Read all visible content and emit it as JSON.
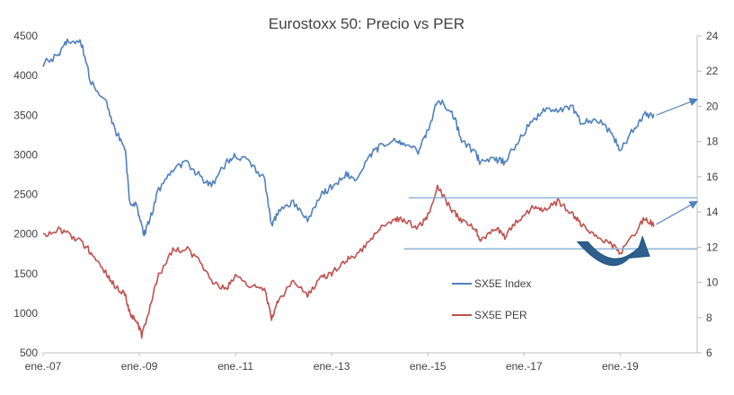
{
  "chart_data": {
    "type": "line",
    "title": "Eurostoxx 50: Precio vs PER",
    "x_tick_labels": [
      "ene.-07",
      "ene.-09",
      "ene.-11",
      "ene.-13",
      "ene.-15",
      "ene.-17",
      "ene.-19"
    ],
    "x_range": [
      2007.0,
      2020.6
    ],
    "y_left": {
      "range": [
        500,
        4500
      ],
      "ticks": [
        500,
        1000,
        1500,
        2000,
        2500,
        3000,
        3500,
        4000,
        4500
      ]
    },
    "y_right": {
      "range": [
        6,
        24
      ],
      "ticks": [
        6,
        8,
        10,
        12,
        14,
        16,
        18,
        20,
        22,
        24
      ]
    },
    "colors": {
      "index": "#4f81bd",
      "per": "#c0504d",
      "annotation": "#4f81bd",
      "arrow_fill": "#2e5f8f",
      "guide": "#8eb4d8"
    },
    "series": [
      {
        "name": "SX5E Index",
        "axis": "left",
        "x": [
          2007.0,
          2007.3,
          2007.5,
          2007.8,
          2008.0,
          2008.3,
          2008.5,
          2008.7,
          2008.8,
          2008.95,
          2009.1,
          2009.2,
          2009.4,
          2009.7,
          2010.0,
          2010.3,
          2010.5,
          2010.8,
          2011.0,
          2011.3,
          2011.6,
          2011.75,
          2011.9,
          2012.2,
          2012.5,
          2012.8,
          2013.0,
          2013.3,
          2013.5,
          2013.8,
          2014.0,
          2014.3,
          2014.5,
          2014.8,
          2015.0,
          2015.2,
          2015.5,
          2015.7,
          2016.0,
          2016.1,
          2016.4,
          2016.6,
          2016.9,
          2017.2,
          2017.4,
          2017.7,
          2018.0,
          2018.2,
          2018.5,
          2018.8,
          2019.0,
          2019.3,
          2019.5,
          2019.7
        ],
        "values": [
          4150,
          4250,
          4450,
          4400,
          3900,
          3700,
          3300,
          3100,
          2400,
          2350,
          2000,
          2150,
          2550,
          2800,
          2900,
          2700,
          2600,
          2900,
          3000,
          2900,
          2700,
          2100,
          2300,
          2400,
          2200,
          2500,
          2600,
          2750,
          2700,
          3000,
          3100,
          3200,
          3150,
          3050,
          3300,
          3700,
          3550,
          3200,
          3000,
          2900,
          2950,
          2900,
          3200,
          3450,
          3550,
          3550,
          3600,
          3400,
          3450,
          3300,
          3050,
          3350,
          3500,
          3500
        ]
      },
      {
        "name": "SX5E PER",
        "axis": "right",
        "x": [
          2007.0,
          2007.3,
          2007.5,
          2007.8,
          2008.0,
          2008.3,
          2008.5,
          2008.7,
          2008.8,
          2008.95,
          2009.05,
          2009.2,
          2009.4,
          2009.7,
          2010.0,
          2010.3,
          2010.5,
          2010.8,
          2011.0,
          2011.3,
          2011.6,
          2011.75,
          2011.9,
          2012.2,
          2012.5,
          2012.8,
          2013.0,
          2013.3,
          2013.5,
          2013.8,
          2014.0,
          2014.3,
          2014.5,
          2014.8,
          2015.0,
          2015.2,
          2015.5,
          2015.7,
          2016.0,
          2016.1,
          2016.4,
          2016.6,
          2016.9,
          2017.2,
          2017.4,
          2017.7,
          2018.0,
          2018.2,
          2018.5,
          2018.8,
          2019.0,
          2019.3,
          2019.5,
          2019.7
        ],
        "values": [
          12.6,
          13.0,
          12.8,
          12.3,
          11.7,
          10.6,
          9.8,
          9.3,
          8.3,
          7.7,
          7.0,
          8.4,
          10.4,
          11.8,
          11.9,
          11.0,
          10.0,
          9.6,
          10.4,
          9.8,
          9.6,
          8.0,
          9.0,
          10.0,
          9.3,
          10.3,
          10.5,
          11.3,
          11.4,
          12.5,
          13.1,
          13.6,
          13.5,
          13.1,
          13.8,
          15.4,
          14.1,
          13.5,
          13.0,
          12.3,
          13.1,
          12.6,
          13.6,
          14.3,
          14.0,
          14.6,
          13.9,
          13.3,
          12.6,
          12.2,
          11.6,
          12.8,
          13.6,
          13.3
        ]
      }
    ],
    "annotations": {
      "guide_high_per": 14.8,
      "guide_low_per": 11.9,
      "arrow_from": [
        2018.2,
        12.0
      ],
      "arrow_to": [
        2019.5,
        12.1
      ]
    }
  }
}
